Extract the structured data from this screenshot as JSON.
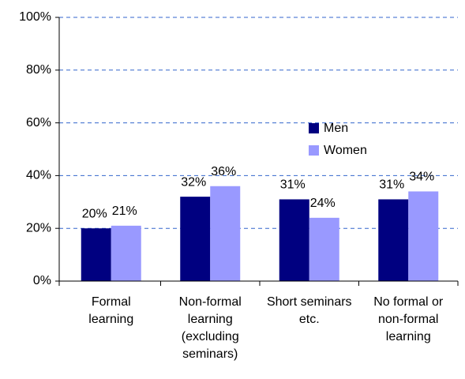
{
  "chart_data": {
    "type": "bar",
    "categories": [
      "Formal learning",
      "Non-formal learning (excluding seminars)",
      "Short seminars etc.",
      "No formal or non-formal learning"
    ],
    "series": [
      {
        "name": "Men",
        "color": "#000080",
        "values": [
          20,
          32,
          31,
          31
        ],
        "value_labels": [
          "20%",
          "32%",
          "31%",
          "31%"
        ]
      },
      {
        "name": "Women",
        "color": "#9999ff",
        "values": [
          21,
          36,
          24,
          34
        ],
        "value_labels": [
          "21%",
          "36%",
          "24%",
          "34%"
        ]
      }
    ],
    "ylim": [
      0,
      100
    ],
    "yticks": [
      {
        "value": 0,
        "label": "0%"
      },
      {
        "value": 20,
        "label": "20%"
      },
      {
        "value": 40,
        "label": "40%"
      },
      {
        "value": 60,
        "label": "60%"
      },
      {
        "value": 80,
        "label": "80%"
      },
      {
        "value": 100,
        "label": "100%"
      }
    ],
    "grid": true
  }
}
